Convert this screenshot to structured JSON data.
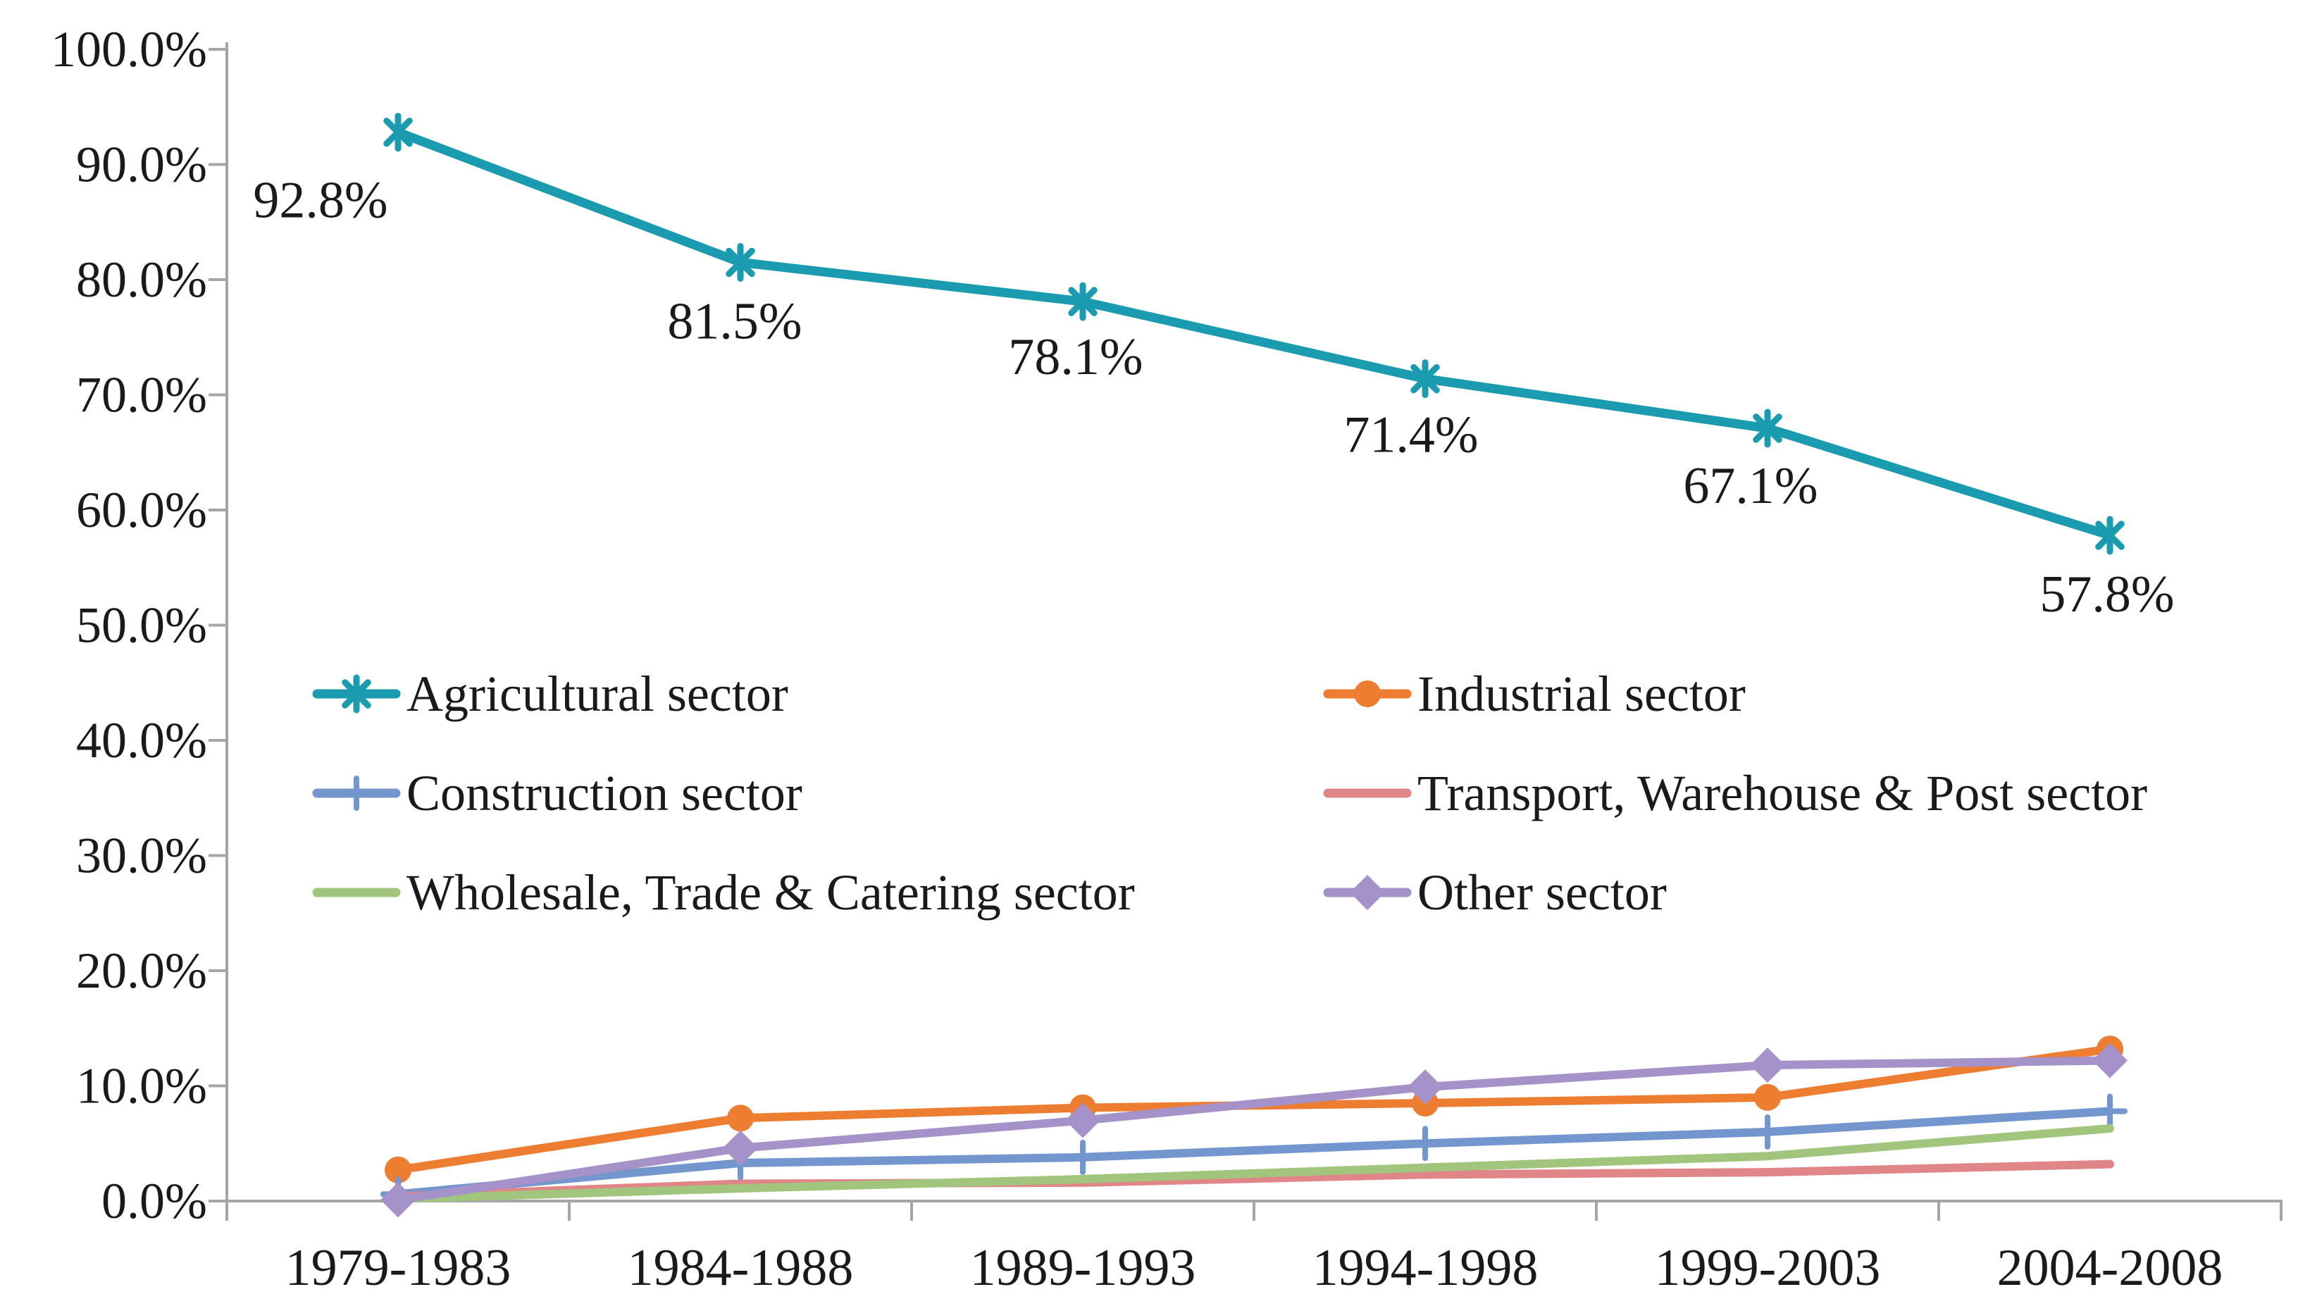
{
  "chart_data": {
    "type": "line",
    "title": "",
    "xlabel": "",
    "ylabel": "",
    "grid": "off",
    "axis_color": "#A6A6A6",
    "text_color": "#1A1A1A",
    "categories": [
      "1979-1983",
      "1984-1988",
      "1989-1993",
      "1994-1998",
      "1999-2003",
      "2004-2008"
    ],
    "y_axis": {
      "min": 0,
      "max": 100,
      "step": 10,
      "tick_labels": [
        "0.0%",
        "10.0%",
        "20.0%",
        "30.0%",
        "40.0%",
        "50.0%",
        "60.0%",
        "70.0%",
        "80.0%",
        "90.0%",
        "100.0%"
      ]
    },
    "series": [
      {
        "name": "Agricultural sector",
        "color": "#1B9BAF",
        "marker": "asterisk",
        "values": [
          92.8,
          81.5,
          78.1,
          71.4,
          67.1,
          57.8
        ],
        "data_labels": [
          "92.8%",
          "81.5%",
          "78.1%",
          "71.4%",
          "67.1%",
          "57.8%"
        ]
      },
      {
        "name": "Industrial sector",
        "color": "#ED7D31",
        "marker": "circle",
        "values": [
          2.7,
          7.2,
          8.1,
          8.5,
          9.0,
          13.2
        ]
      },
      {
        "name": "Construction sector",
        "color": "#7396CF",
        "marker": "plus",
        "values": [
          0.6,
          3.3,
          3.8,
          5.0,
          6.0,
          7.8
        ]
      },
      {
        "name": "Transport, Warehouse & Post sector",
        "color": "#E08588",
        "marker": "none",
        "values": [
          0.4,
          1.5,
          1.6,
          2.3,
          2.5,
          3.2
        ]
      },
      {
        "name": "Wholesale, Trade & Catering sector",
        "color": "#A2C57E",
        "marker": "none",
        "values": [
          0.2,
          1.1,
          1.9,
          2.9,
          3.9,
          6.3
        ]
      },
      {
        "name": "Other sector",
        "color": "#A492C8",
        "marker": "diamond",
        "values": [
          0.1,
          4.6,
          7.0,
          9.9,
          11.8,
          12.2
        ]
      }
    ],
    "legend": {
      "position": "inside-middle-left",
      "columns": 2,
      "rows": [
        [
          "Agricultural sector",
          "Industrial sector"
        ],
        [
          "Construction sector",
          "Transport, Warehouse & Post sector"
        ],
        [
          "Wholesale, Trade & Catering sector",
          "Other sector"
        ]
      ]
    }
  }
}
